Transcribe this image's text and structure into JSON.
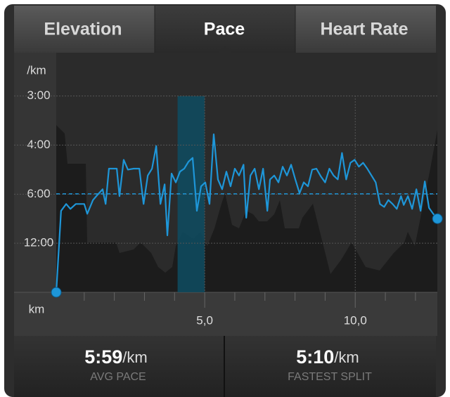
{
  "tabs": [
    "Elevation",
    "Pace",
    "Heart Rate"
  ],
  "active_tab": 1,
  "stats": [
    {
      "value": "5:59",
      "unit": "/km",
      "label": "AVG PACE"
    },
    {
      "value": "5:10",
      "unit": "/km",
      "label": "FASTEST SPLIT"
    }
  ],
  "chart_data": {
    "type": "line",
    "y_label": "/km",
    "x_label": "km",
    "x": [
      0.07,
      0.23,
      0.4,
      0.54,
      0.72,
      1.0,
      1.1,
      1.29,
      1.43,
      1.61,
      1.71,
      1.82,
      1.94,
      2.08,
      2.17,
      2.31,
      2.45,
      2.64,
      2.83,
      2.97,
      3.11,
      3.25,
      3.39,
      3.53,
      3.67,
      3.76,
      3.9,
      4.04,
      4.18,
      4.32,
      4.46,
      4.6,
      4.74,
      4.88,
      5.02,
      5.16,
      5.3,
      5.44,
      5.58,
      5.72,
      5.86,
      6.0,
      6.14,
      6.29,
      6.38,
      6.52,
      6.66,
      6.8,
      6.94,
      7.08,
      7.17,
      7.31,
      7.45,
      7.59,
      7.73,
      7.87,
      8.01,
      8.15,
      8.29,
      8.43,
      8.57,
      8.71,
      8.86,
      9.0,
      9.14,
      9.28,
      9.42,
      9.56,
      9.7,
      9.84,
      9.98,
      10.12,
      10.26,
      10.4,
      10.54,
      10.68,
      10.82,
      10.96,
      11.1,
      11.24,
      11.38,
      11.52,
      11.61,
      11.75,
      11.89,
      12.03,
      12.17,
      12.31,
      12.45,
      12.59,
      12.73
    ],
    "series": [
      {
        "color": "#1e96d8",
        "values": [
          0,
          8.3,
          9.0,
          8.5,
          9.0,
          9.0,
          8.0,
          9.4,
          9.9,
          10.5,
          9.0,
          12.6,
          12.6,
          12.6,
          9.8,
          13.5,
          12.5,
          12.6,
          12.6,
          9.0,
          11.9,
          12.6,
          14.9,
          9.0,
          11.0,
          5.8,
          12.1,
          11.2,
          12.3,
          12.6,
          13.3,
          13.7,
          8.3,
          10.8,
          11.2,
          9.0,
          16.1,
          11.5,
          10.5,
          12.3,
          10.8,
          12.6,
          11.9,
          13.0,
          7.6,
          11.9,
          12.6,
          10.5,
          12.6,
          8.3,
          11.5,
          11.9,
          11.2,
          12.8,
          11.9,
          13.0,
          11.5,
          10.1,
          11.2,
          10.8,
          12.5,
          12.6,
          11.8,
          11.2,
          12.6,
          11.9,
          11.5,
          14.2,
          11.5,
          13.2,
          13.5,
          12.8,
          13.2,
          12.6,
          11.9,
          11.2,
          9.0,
          8.7,
          9.4,
          9.0,
          8.5,
          9.8,
          8.9,
          9.8,
          8.5,
          10.5,
          8.3,
          11.3,
          8.6,
          8.0,
          7.5
        ]
      }
    ],
    "average_line": 10.03,
    "highlight": [
      4.1,
      5
    ],
    "xlim": [
      0,
      12.75
    ],
    "ylim": [
      0,
      24.2
    ],
    "xticks": [
      {
        "value": 5,
        "label": "5,0"
      },
      {
        "value": 10,
        "label": "10,0"
      }
    ],
    "xminor_ticks": [
      1,
      2,
      3,
      4,
      6,
      7,
      8,
      9,
      11,
      12
    ],
    "yticks": [
      {
        "value": 20,
        "label": "3:00"
      },
      {
        "value": 15,
        "label": "4:00"
      },
      {
        "value": 10,
        "label": "6:00"
      },
      {
        "value": 5,
        "label": "12:00"
      }
    ],
    "grid": true
  }
}
